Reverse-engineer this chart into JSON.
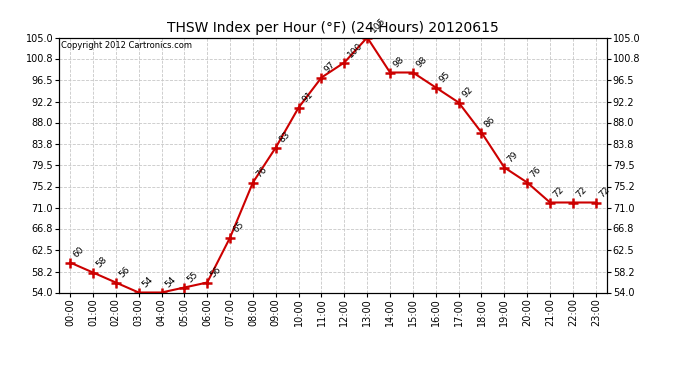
{
  "title": "THSW Index per Hour (°F) (24 Hours) 20120615",
  "copyright": "Copyright 2012 Cartronics.com",
  "hours": [
    "00:00",
    "01:00",
    "02:00",
    "03:00",
    "04:00",
    "05:00",
    "06:00",
    "07:00",
    "08:00",
    "09:00",
    "10:00",
    "11:00",
    "12:00",
    "13:00",
    "14:00",
    "15:00",
    "16:00",
    "17:00",
    "18:00",
    "19:00",
    "20:00",
    "21:00",
    "22:00",
    "23:00"
  ],
  "values": [
    60,
    58,
    56,
    54,
    54,
    55,
    56,
    65,
    76,
    83,
    91,
    97,
    100,
    105,
    98,
    98,
    95,
    92,
    86,
    79,
    76,
    72,
    72,
    72
  ],
  "line_color": "#cc0000",
  "marker": "+",
  "marker_color": "#cc0000",
  "grid_color": "#c8c8c8",
  "bg_color": "#ffffff",
  "plot_bg_color": "#ffffff",
  "ylim_min": 54.0,
  "ylim_max": 105.0,
  "yticks": [
    54.0,
    58.2,
    62.5,
    66.8,
    71.0,
    75.2,
    79.5,
    83.8,
    88.0,
    92.2,
    96.5,
    100.8,
    105.0
  ],
  "title_fontsize": 10,
  "label_fontsize": 7,
  "annotation_fontsize": 6.5,
  "copyright_fontsize": 6
}
